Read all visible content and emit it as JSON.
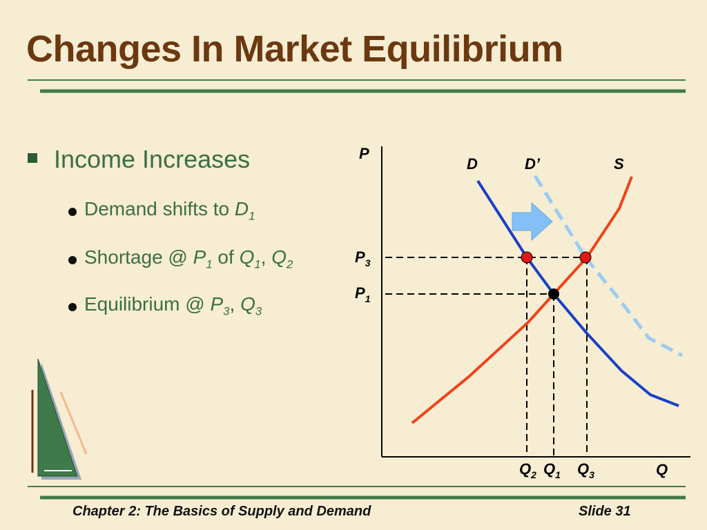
{
  "title": "Changes In Market Equilibrium",
  "bullet": "Income Increases",
  "sub_bullets": [
    [
      "Demand shifts to ",
      "D",
      "1"
    ],
    [
      "Shortage @ ",
      "P",
      "1",
      " of ",
      "Q",
      "1",
      ", ",
      "Q",
      "2"
    ],
    [
      "Equilibrium @ ",
      "P",
      "3",
      ", ",
      "Q",
      "3"
    ]
  ],
  "diagram": {
    "axis_p": "P",
    "axis_q": "Q",
    "curves": [
      "D",
      "D’",
      "S"
    ],
    "price_labels": [
      [
        "P",
        "3"
      ],
      [
        "P",
        "1"
      ]
    ],
    "quantity_labels": [
      [
        "Q",
        "2"
      ],
      [
        "Q",
        "1"
      ],
      [
        "Q",
        "3"
      ]
    ]
  },
  "footer": {
    "chapter": "Chapter 2: The Basics of Supply and Demand",
    "slide": "Slide 31"
  }
}
